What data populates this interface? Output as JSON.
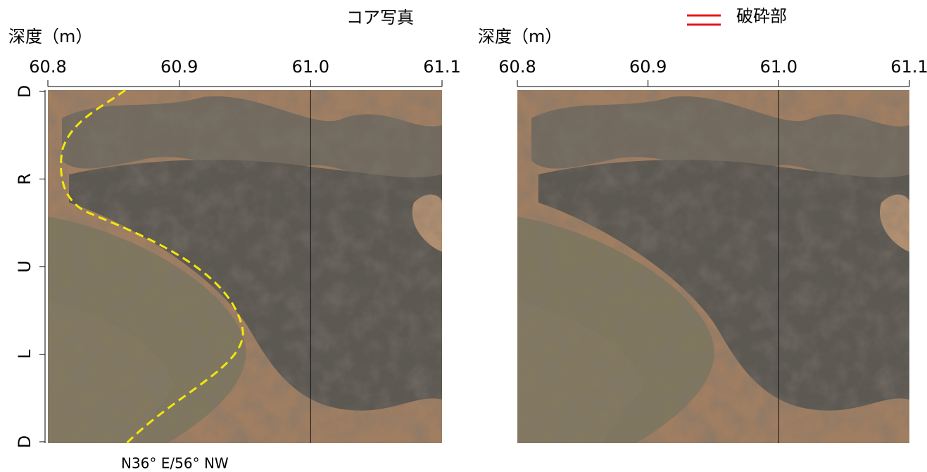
{
  "title": "コア写真",
  "legend": {
    "label": "破砕部",
    "color": "#e8141b"
  },
  "annotation": "N36° E/56° NW",
  "panels": [
    {
      "axis_label": "深度（m）",
      "xlim": [
        60.8,
        61.1
      ],
      "xticks": [
        60.8,
        60.9,
        {
          "value": 61,
          "label": "61.0"
        },
        61.1
      ],
      "orientation_labels": [
        "D",
        "R",
        "U",
        "L",
        "D"
      ]
    },
    {
      "axis_label": "深度（m）",
      "xlim": [
        60.8,
        61.1
      ],
      "xticks": [
        60.8,
        60.9,
        {
          "value": 61,
          "label": "61.0"
        },
        61.1
      ]
    }
  ]
}
